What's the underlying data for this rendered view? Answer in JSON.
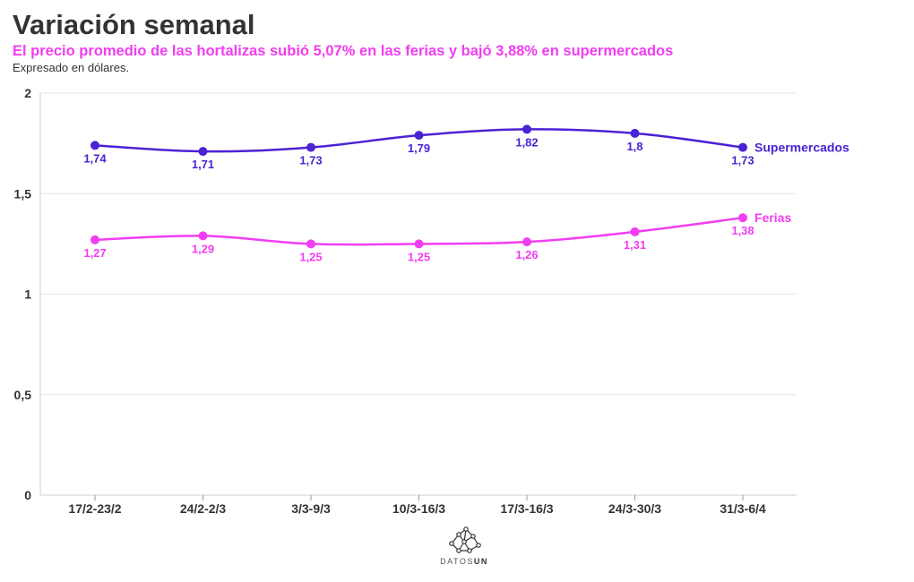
{
  "header": {
    "title": "Variación semanal",
    "subtitle": "El precio promedio de las hortalizas subió 5,07% en las ferias y bajó 3,88% en supermercados",
    "note": "Expresado en dólares."
  },
  "logo": {
    "text_light": "DATOS",
    "text_bold": "UN",
    "icon": "network-graph-icon"
  },
  "chart_data": {
    "type": "line",
    "categories": [
      "17/2-23/2",
      "24/2-2/3",
      "3/3-9/3",
      "10/3-16/3",
      "17/3-16/3",
      "24/3-30/3",
      "31/3-6/4"
    ],
    "ylim": [
      0,
      2
    ],
    "yticks": [
      0,
      0.5,
      1,
      1.5,
      2
    ],
    "ytick_labels": [
      "0",
      "0,5",
      "1",
      "1,5",
      "2"
    ],
    "grid": true,
    "series": [
      {
        "name": "Supermercados",
        "color": "#4b22d4",
        "values": [
          1.74,
          1.71,
          1.73,
          1.79,
          1.82,
          1.8,
          1.73
        ],
        "labels": [
          "1,74",
          "1,71",
          "1,73",
          "1,79",
          "1,82",
          "1,8",
          "1,73"
        ]
      },
      {
        "name": "Ferias",
        "color": "#f23df2",
        "values": [
          1.27,
          1.29,
          1.25,
          1.25,
          1.26,
          1.31,
          1.38
        ],
        "labels": [
          "1,27",
          "1,29",
          "1,25",
          "1,25",
          "1,26",
          "1,31",
          "1,38"
        ]
      }
    ]
  }
}
